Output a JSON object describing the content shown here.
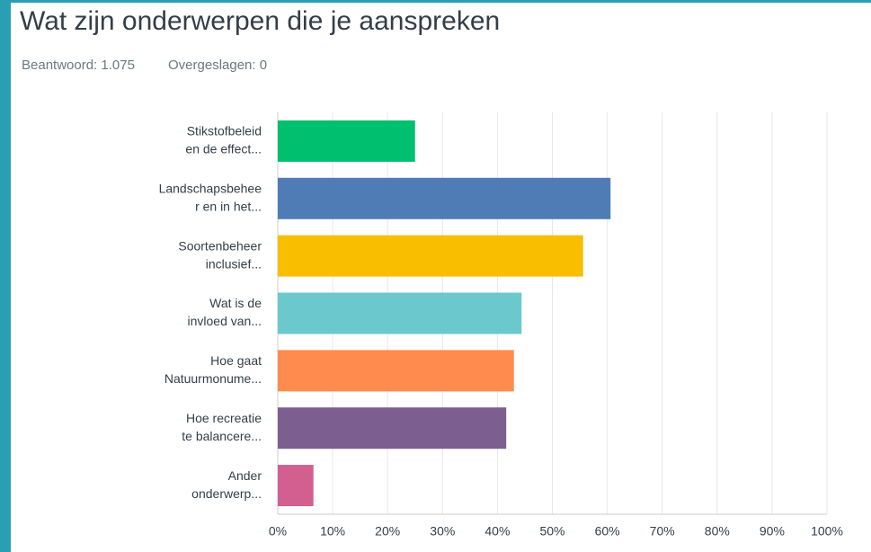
{
  "chart_data": {
    "type": "bar",
    "orientation": "horizontal",
    "title": "Wat zijn onderwerpen die je aanspreken",
    "answered": "Beantwoord: 1.075",
    "skipped": "Overgeslagen: 0",
    "categories": [
      [
        "Stikstofbeleid",
        "en de effect..."
      ],
      [
        "Landschapsbehee",
        "r en in het..."
      ],
      [
        "Soortenbeheer",
        "inclusief..."
      ],
      [
        "Wat is de",
        "invloed van..."
      ],
      [
        "Hoe gaat",
        "Natuurmonume..."
      ],
      [
        "Hoe recreatie",
        "te balancere..."
      ],
      [
        "Ander",
        "onderwerp..."
      ]
    ],
    "values": [
      25.0,
      60.6,
      55.6,
      44.4,
      43.0,
      41.6,
      6.5
    ],
    "colors": [
      "#00bf6f",
      "#507cb6",
      "#f9be00",
      "#6bc8cd",
      "#ff8b4f",
      "#7d5e90",
      "#d25f90"
    ],
    "xlim": [
      0,
      100
    ],
    "xticks": [
      {
        "value": 0,
        "label": "0%"
      },
      {
        "value": 10,
        "label": "10%"
      },
      {
        "value": 20,
        "label": "20%"
      },
      {
        "value": 30,
        "label": "30%"
      },
      {
        "value": 40,
        "label": "40%"
      },
      {
        "value": 50,
        "label": "50%"
      },
      {
        "value": 60,
        "label": "60%"
      },
      {
        "value": 70,
        "label": "70%"
      },
      {
        "value": 80,
        "label": "80%"
      },
      {
        "value": 90,
        "label": "90%"
      },
      {
        "value": 100,
        "label": "100%"
      }
    ],
    "grid": true
  }
}
